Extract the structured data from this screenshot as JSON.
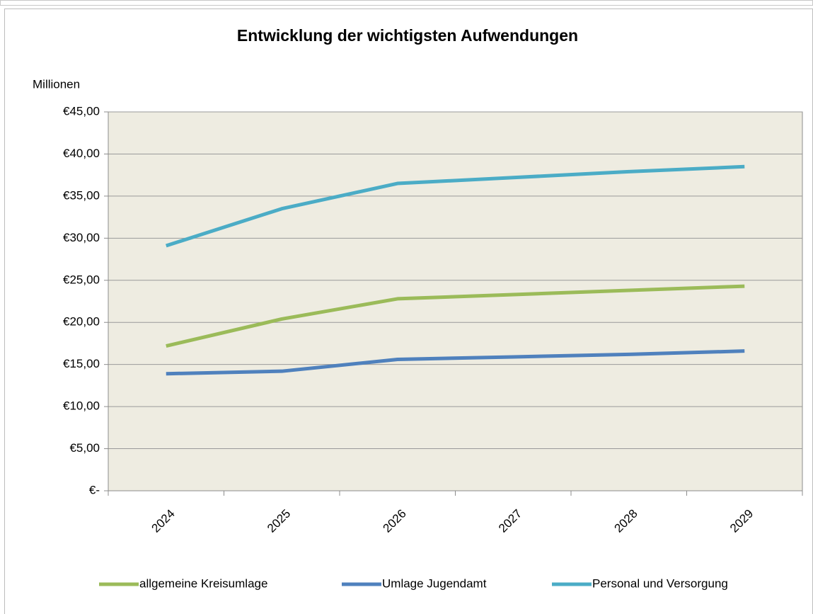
{
  "chart_data": {
    "type": "line",
    "title": "Entwicklung der wichtigsten Aufwendungen",
    "y_label": "Millionen",
    "categories": [
      "2024",
      "2025",
      "2026",
      "2027",
      "2028",
      "2029"
    ],
    "series": [
      {
        "name": "allgemeine Kreisumlage",
        "color": "#9bbb59",
        "values": [
          17.2,
          20.4,
          22.8,
          23.3,
          23.8,
          24.3
        ]
      },
      {
        "name": "Umlage Jugendamt",
        "color": "#4f81bd",
        "values": [
          13.9,
          14.2,
          15.6,
          15.9,
          16.2,
          16.6
        ]
      },
      {
        "name": "Personal und Versorgung",
        "color": "#4bacc6",
        "values": [
          29.1,
          33.5,
          36.5,
          37.2,
          37.9,
          38.5
        ]
      }
    ],
    "ylim": [
      0,
      45
    ],
    "yticks": [
      {
        "value": 0,
        "label": "€-"
      },
      {
        "value": 5,
        "label": "€5,00"
      },
      {
        "value": 10,
        "label": "€10,00"
      },
      {
        "value": 15,
        "label": "€15,00"
      },
      {
        "value": 20,
        "label": "€20,00"
      },
      {
        "value": 25,
        "label": "€25,00"
      },
      {
        "value": 30,
        "label": "€30,00"
      },
      {
        "value": 35,
        "label": "€35,00"
      },
      {
        "value": 40,
        "label": "€40,00"
      },
      {
        "value": 45,
        "label": "€45,00"
      }
    ],
    "grid": true,
    "legend": "bottom",
    "plot_background": "#eeece1"
  }
}
